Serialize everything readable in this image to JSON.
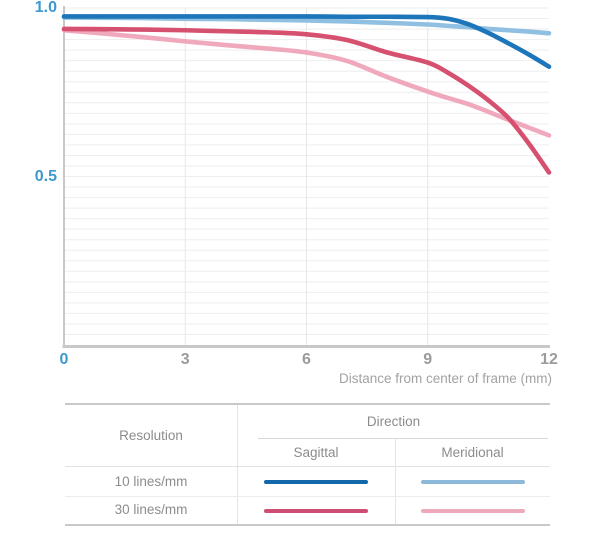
{
  "chart_data": {
    "type": "line",
    "title": "",
    "xlabel": "Distance from center of frame (mm)",
    "ylabel": "",
    "xlim": [
      0,
      12
    ],
    "ylim": [
      0,
      1
    ],
    "x_ticks": [
      0,
      3,
      6,
      9,
      12
    ],
    "x_tick_labels": [
      "0",
      "3",
      "6",
      "9",
      "12"
    ],
    "y_ticks": [
      0.5,
      1.0
    ],
    "y_tick_labels": [
      "0.5",
      "1.0"
    ],
    "grid": {
      "y_minor_divisions": 32,
      "vertical_at": [
        3,
        6,
        9
      ],
      "grid_on": true
    },
    "legend_position": "bottom-table",
    "series": [
      {
        "name": "30 lines/mm Meridional",
        "resolution": "30 lines/mm",
        "direction": "Meridional",
        "color": "#f0a9bc",
        "line_width": 4.6,
        "x": [
          0,
          1,
          2,
          3,
          4,
          5,
          6,
          7,
          8,
          9,
          9.5,
          10,
          10.5,
          11,
          11.5,
          12
        ],
        "y": [
          0.934,
          0.924,
          0.913,
          0.901,
          0.89,
          0.88,
          0.868,
          0.843,
          0.795,
          0.752,
          0.733,
          0.715,
          0.692,
          0.668,
          0.645,
          0.622
        ]
      },
      {
        "name": "30 lines/mm Sagittal",
        "resolution": "30 lines/mm",
        "direction": "Sagittal",
        "color": "#d6506f",
        "line_width": 4.6,
        "x": [
          0,
          1,
          2,
          3,
          4,
          5,
          6,
          7,
          8,
          9,
          9.5,
          10,
          10.5,
          11,
          11.5,
          12
        ],
        "y": [
          0.938,
          0.937,
          0.936,
          0.934,
          0.931,
          0.928,
          0.922,
          0.905,
          0.868,
          0.838,
          0.808,
          0.77,
          0.726,
          0.673,
          0.598,
          0.512
        ]
      },
      {
        "name": "10 lines/mm Meridional",
        "resolution": "10 lines/mm",
        "direction": "Meridional",
        "color": "#8fc0e1",
        "line_width": 4.6,
        "x": [
          0,
          1,
          2,
          3,
          4,
          5,
          6,
          7,
          8,
          9,
          9.5,
          10,
          10.5,
          11,
          11.5,
          12
        ],
        "y": [
          0.972,
          0.971,
          0.97,
          0.968,
          0.967,
          0.965,
          0.963,
          0.96,
          0.956,
          0.951,
          0.947,
          0.943,
          0.938,
          0.934,
          0.93,
          0.925
        ]
      },
      {
        "name": "10 lines/mm Sagittal",
        "resolution": "10 lines/mm",
        "direction": "Sagittal",
        "color": "#1d76ba",
        "line_width": 4.6,
        "x": [
          0,
          1,
          2,
          3,
          4,
          5,
          6,
          7,
          8,
          9,
          9.5,
          10,
          10.5,
          11,
          11.5,
          12
        ],
        "y": [
          0.975,
          0.975,
          0.975,
          0.975,
          0.975,
          0.975,
          0.975,
          0.974,
          0.974,
          0.973,
          0.968,
          0.952,
          0.926,
          0.895,
          0.862,
          0.826
        ]
      }
    ]
  },
  "axis_styles": {
    "accent_tick_color": "#3e98ce",
    "tick_color": "#9b9b9b",
    "caption_color": "#a2a2a2",
    "gridline_color": "#eeeeee",
    "vertical_gridline_color": "#e7e7e7",
    "axis_line_color": "#c8c8c8"
  },
  "legend_table": {
    "resolution_header": "Resolution",
    "direction_header": "Direction",
    "sagittal_header": "Sagittal",
    "meridional_header": "Meridional",
    "rows": [
      {
        "label": "10 lines/mm",
        "sagittal_color": "#1368a9",
        "meridional_color": "#8cb9da"
      },
      {
        "label": "30 lines/mm",
        "sagittal_color": "#ce4d72",
        "meridional_color": "#eeaaba"
      }
    ]
  }
}
